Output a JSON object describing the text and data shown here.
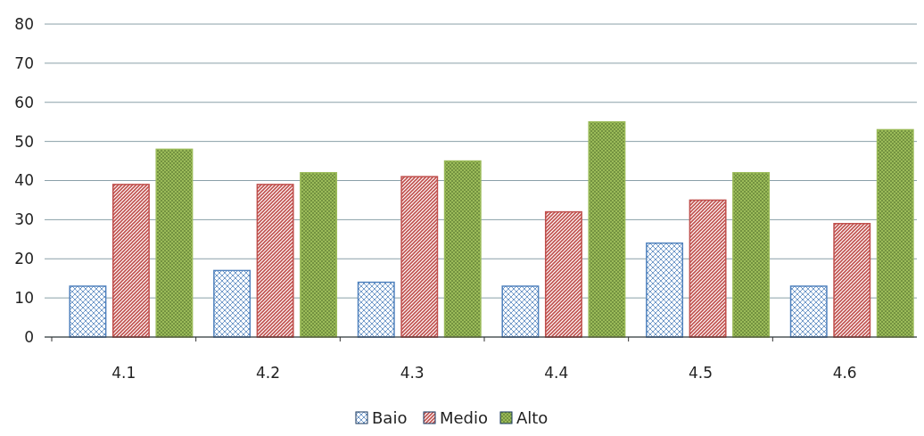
{
  "chart_data": {
    "type": "bar",
    "categories": [
      "4.1",
      "4.2",
      "4.3",
      "4.4",
      "4.5",
      "4.6"
    ],
    "series": [
      {
        "name": "Baio",
        "color": "#4f81bd",
        "values": [
          13,
          17,
          14,
          13,
          24,
          13
        ]
      },
      {
        "name": "Medio",
        "color": "#c0504d",
        "values": [
          39,
          39,
          41,
          32,
          35,
          29
        ]
      },
      {
        "name": "Alto",
        "color": "#9bbb59",
        "values": [
          48,
          42,
          45,
          55,
          42,
          53
        ]
      }
    ],
    "ylim": [
      0,
      80
    ],
    "yticks": [
      0,
      10,
      20,
      30,
      40,
      50,
      60,
      70,
      80
    ],
    "grid": "y",
    "legend": "bottom"
  }
}
